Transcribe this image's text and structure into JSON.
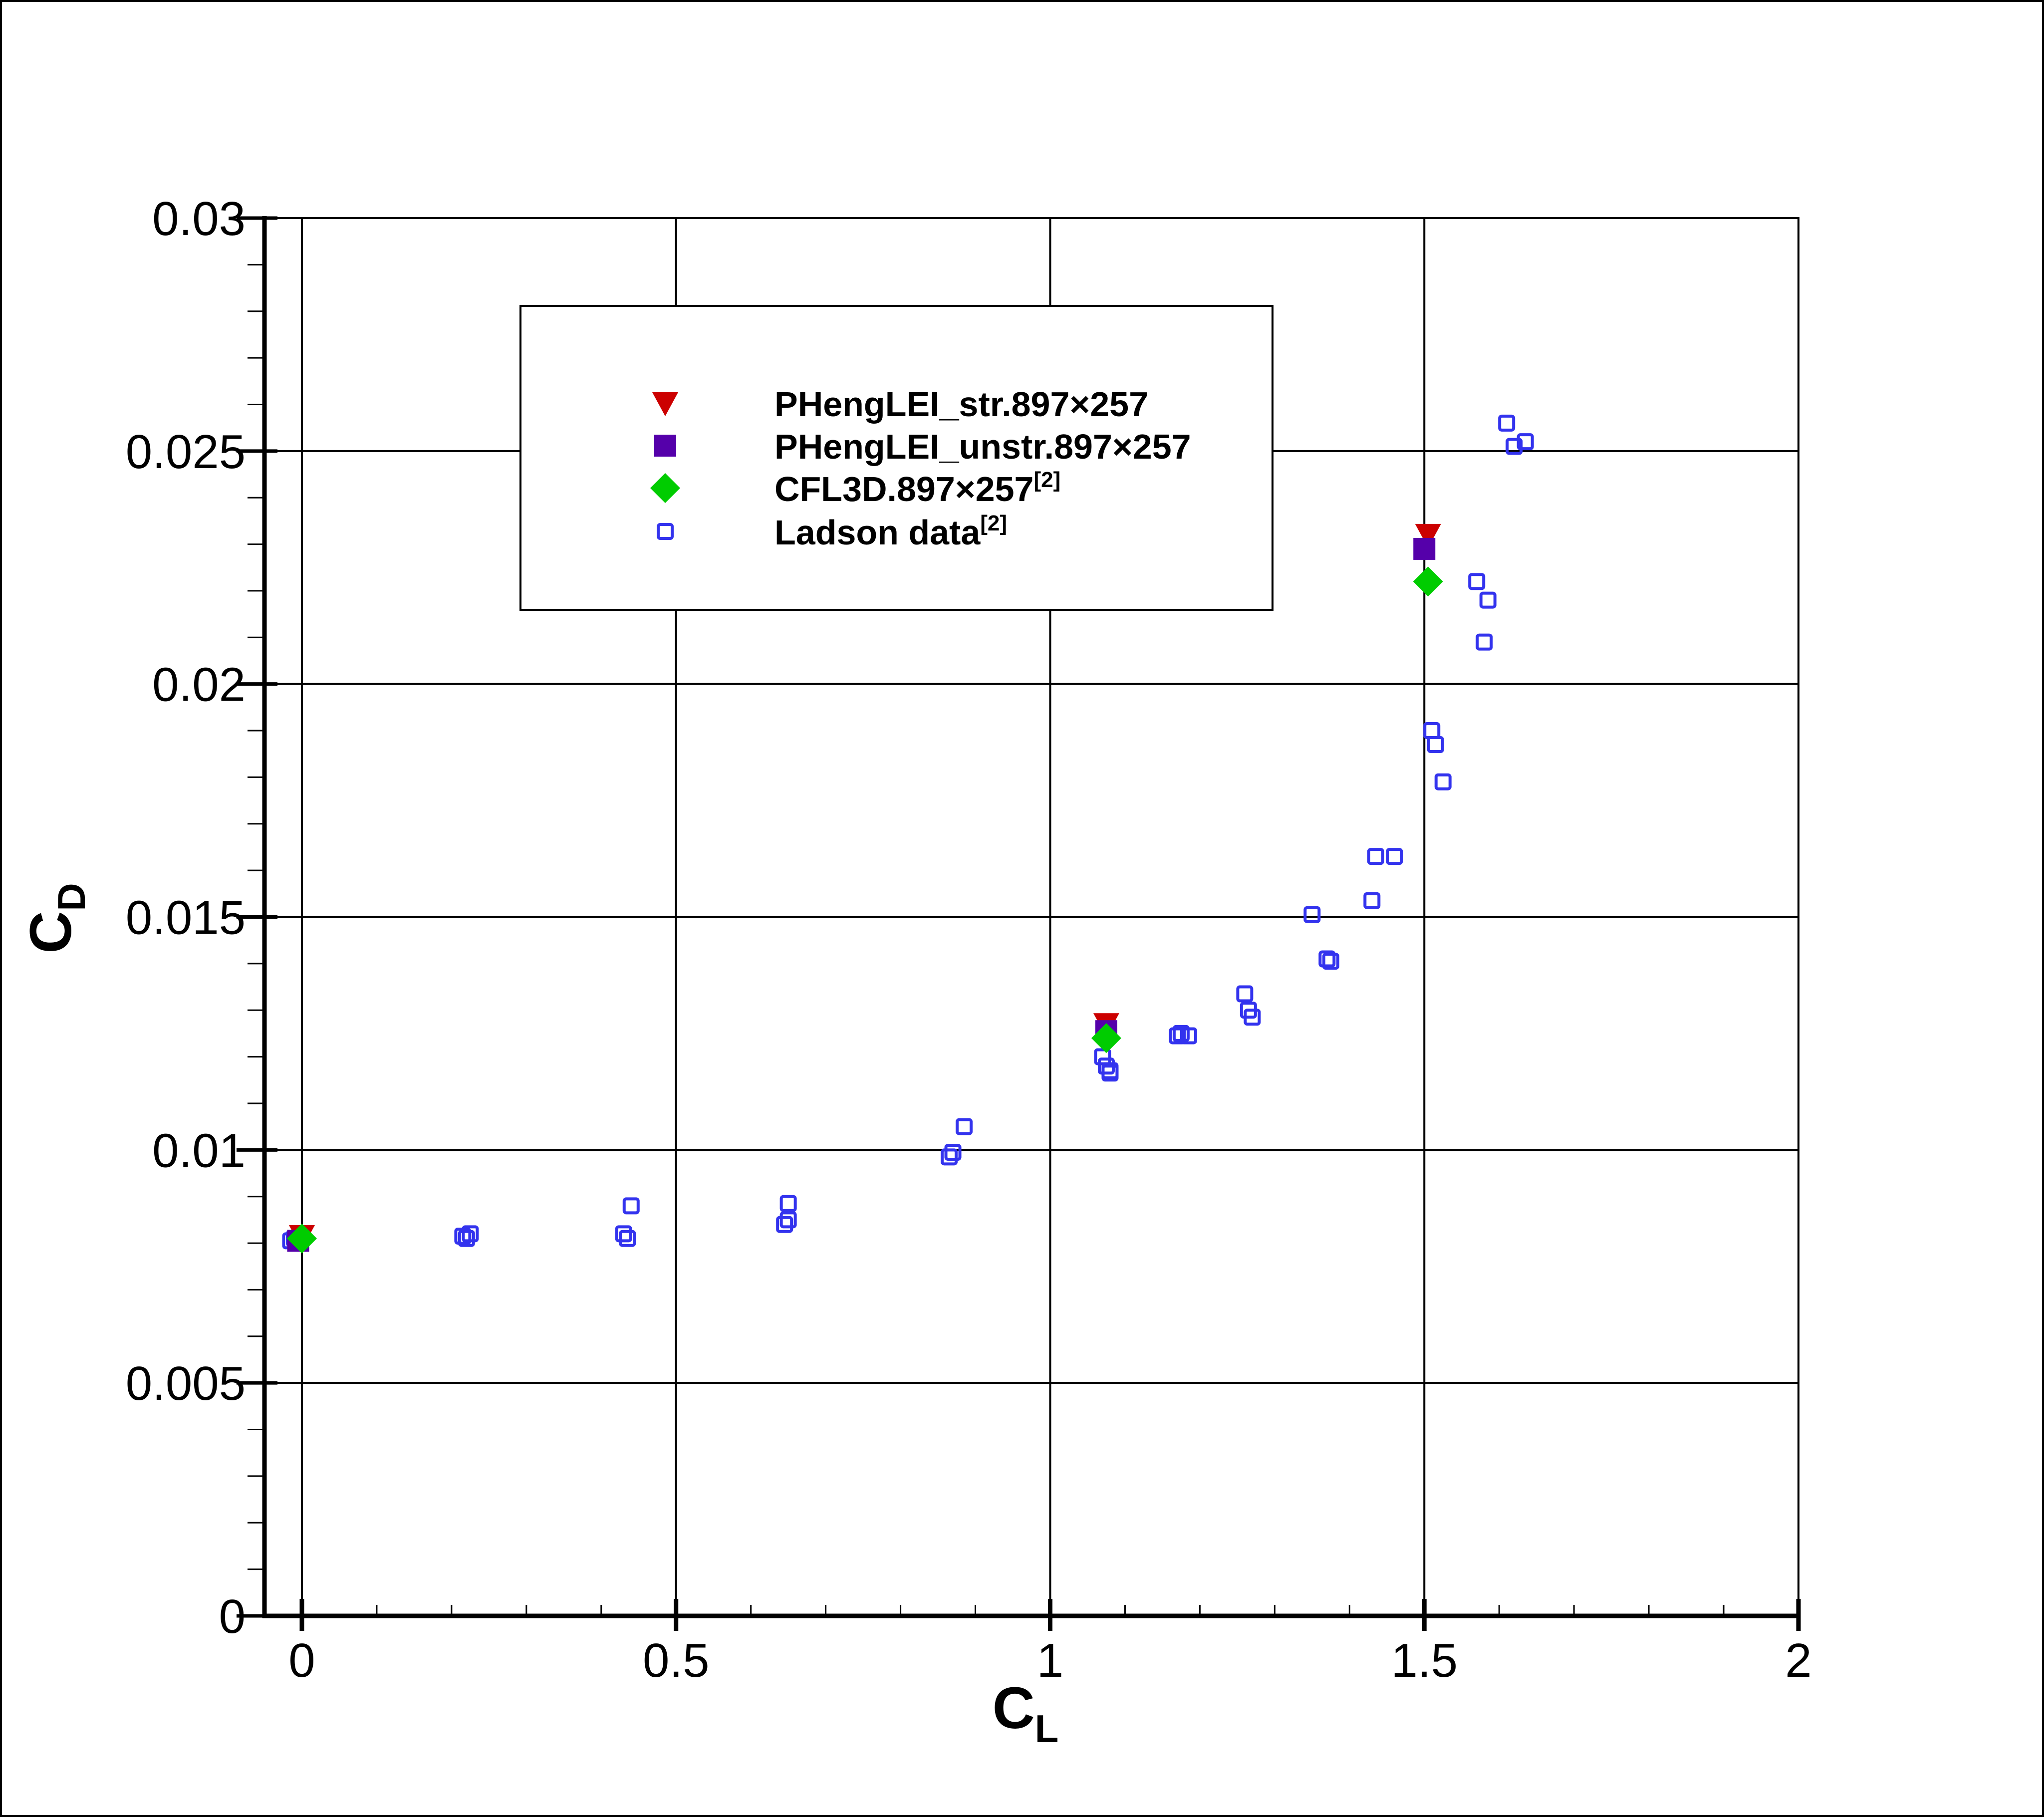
{
  "chart_data": {
    "type": "scatter",
    "xlabel": "C",
    "xlabel_sub": "L",
    "ylabel": "C",
    "ylabel_sub": "D",
    "xlim": [
      -0.05,
      2.0
    ],
    "ylim": [
      0,
      0.03
    ],
    "x_ticks": [
      0,
      0.5,
      1,
      1.5,
      2
    ],
    "x_tick_labels": [
      "0",
      "0.5",
      "1",
      "1.5",
      "2"
    ],
    "y_ticks": [
      0,
      0.005,
      0.01,
      0.015,
      0.02,
      0.025,
      0.03
    ],
    "y_tick_labels": [
      "0",
      "0.005",
      "0.01",
      "0.015",
      "0.02",
      "0.025",
      "0.03"
    ],
    "grid": true,
    "legend_position": "top-center",
    "series": [
      {
        "name": "PHengLEI_str.897×257",
        "name_sup": "",
        "marker": "triangle-down",
        "color": "#cc0000",
        "x": [
          0.0,
          1.075,
          1.505
        ],
        "y": [
          0.00815,
          0.0127,
          0.0232
        ]
      },
      {
        "name": "PHengLEI_unstr.897×257",
        "name_sup": "",
        "marker": "square-filled",
        "color": "#5500aa",
        "x": [
          -0.005,
          1.075,
          1.5
        ],
        "y": [
          0.00805,
          0.01255,
          0.0229
        ]
      },
      {
        "name": "CFL3D.897×257",
        "name_sup": "[2]",
        "marker": "diamond",
        "color": "#00cc00",
        "x": [
          0.0,
          1.075,
          1.505
        ],
        "y": [
          0.0081,
          0.0124,
          0.0222
        ]
      },
      {
        "name": "Ladson data",
        "name_sup": "[2]",
        "marker": "square-open",
        "color": "#3333ee",
        "x": [
          -0.015,
          -0.01,
          -0.005,
          0.0,
          0.215,
          0.22,
          0.225,
          0.43,
          0.435,
          0.44,
          0.645,
          0.65,
          0.65,
          0.865,
          0.87,
          0.885,
          1.07,
          1.075,
          1.08,
          1.08,
          1.17,
          1.175,
          1.185,
          1.26,
          1.265,
          1.27,
          1.35,
          1.37,
          1.375,
          1.43,
          1.435,
          1.46,
          1.51,
          1.515,
          1.525,
          1.57,
          1.58,
          1.585,
          1.61,
          1.62,
          1.635
        ],
        "y": [
          0.00805,
          0.0081,
          0.00805,
          0.0081,
          0.00815,
          0.0081,
          0.0082,
          0.0082,
          0.0081,
          0.0088,
          0.0084,
          0.0085,
          0.00885,
          0.00985,
          0.00995,
          0.0105,
          0.012,
          0.0118,
          0.0117,
          0.01165,
          0.01245,
          0.0125,
          0.01245,
          0.01335,
          0.013,
          0.01285,
          0.01505,
          0.0141,
          0.01405,
          0.01535,
          0.0163,
          0.0163,
          0.019,
          0.0187,
          0.0179,
          0.0222,
          0.0209,
          0.0218,
          0.0256,
          0.0251,
          0.0252
        ]
      }
    ]
  }
}
